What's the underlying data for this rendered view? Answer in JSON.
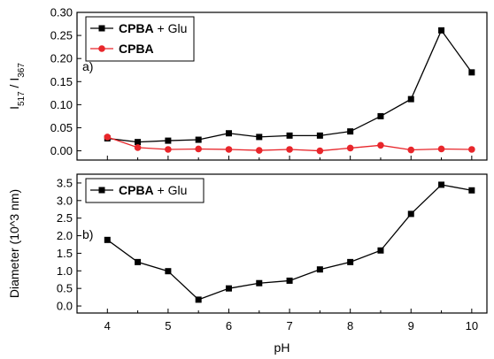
{
  "chart_data": [
    {
      "type": "line",
      "panel_label": "a)",
      "ylabel_main": "I",
      "ylabel_sub1": "517",
      "ylabel_sep": " / I",
      "ylabel_sub2": "367",
      "xlabel": "pH",
      "xlim": [
        3.5,
        10.25
      ],
      "ylim": [
        -0.02,
        0.3
      ],
      "yticks": [
        "0.00",
        "0.05",
        "0.10",
        "0.15",
        "0.20",
        "0.25",
        "0.30"
      ],
      "legend_position": "top-left",
      "series": [
        {
          "name_bold": "CPBA",
          "name_rest": " + Glu",
          "color": "#000000",
          "marker": "square",
          "x": [
            4,
            4.5,
            5,
            5.5,
            6,
            6.5,
            7,
            7.5,
            8,
            8.5,
            9,
            9.5,
            10
          ],
          "values": [
            0.027,
            0.019,
            0.022,
            0.024,
            0.038,
            0.03,
            0.033,
            0.033,
            0.042,
            0.075,
            0.112,
            0.261,
            0.17
          ]
        },
        {
          "name_bold": "CPBA",
          "name_rest": "",
          "color": "#e8262b",
          "marker": "circle",
          "x": [
            4,
            4.5,
            5,
            5.5,
            6,
            6.5,
            7,
            7.5,
            8,
            8.5,
            9,
            9.5,
            10
          ],
          "values": [
            0.03,
            0.007,
            0.003,
            0.004,
            0.003,
            0.001,
            0.003,
            0.0,
            0.006,
            0.012,
            0.002,
            0.004,
            0.003
          ]
        }
      ]
    },
    {
      "type": "line",
      "panel_label": "b)",
      "ylabel": "Diameter (10^3 nm)",
      "xlabel": "pH",
      "xlim": [
        3.5,
        10.25
      ],
      "ylim": [
        -0.2,
        3.75
      ],
      "yticks": [
        "0.0",
        "0.5",
        "1.0",
        "1.5",
        "2.0",
        "2.5",
        "3.0",
        "3.5"
      ],
      "xticks": [
        "4",
        "5",
        "6",
        "7",
        "8",
        "9",
        "10"
      ],
      "legend_position": "top-left",
      "series": [
        {
          "name_bold": "CPBA",
          "name_rest": " + Glu",
          "color": "#000000",
          "marker": "square",
          "x": [
            4,
            4.5,
            5,
            5.5,
            6,
            6.5,
            7,
            7.5,
            8,
            8.5,
            9,
            9.5,
            10
          ],
          "values": [
            1.88,
            1.25,
            0.99,
            0.18,
            0.5,
            0.65,
            0.72,
            1.04,
            1.25,
            1.58,
            2.62,
            3.45,
            3.29
          ]
        }
      ]
    }
  ]
}
